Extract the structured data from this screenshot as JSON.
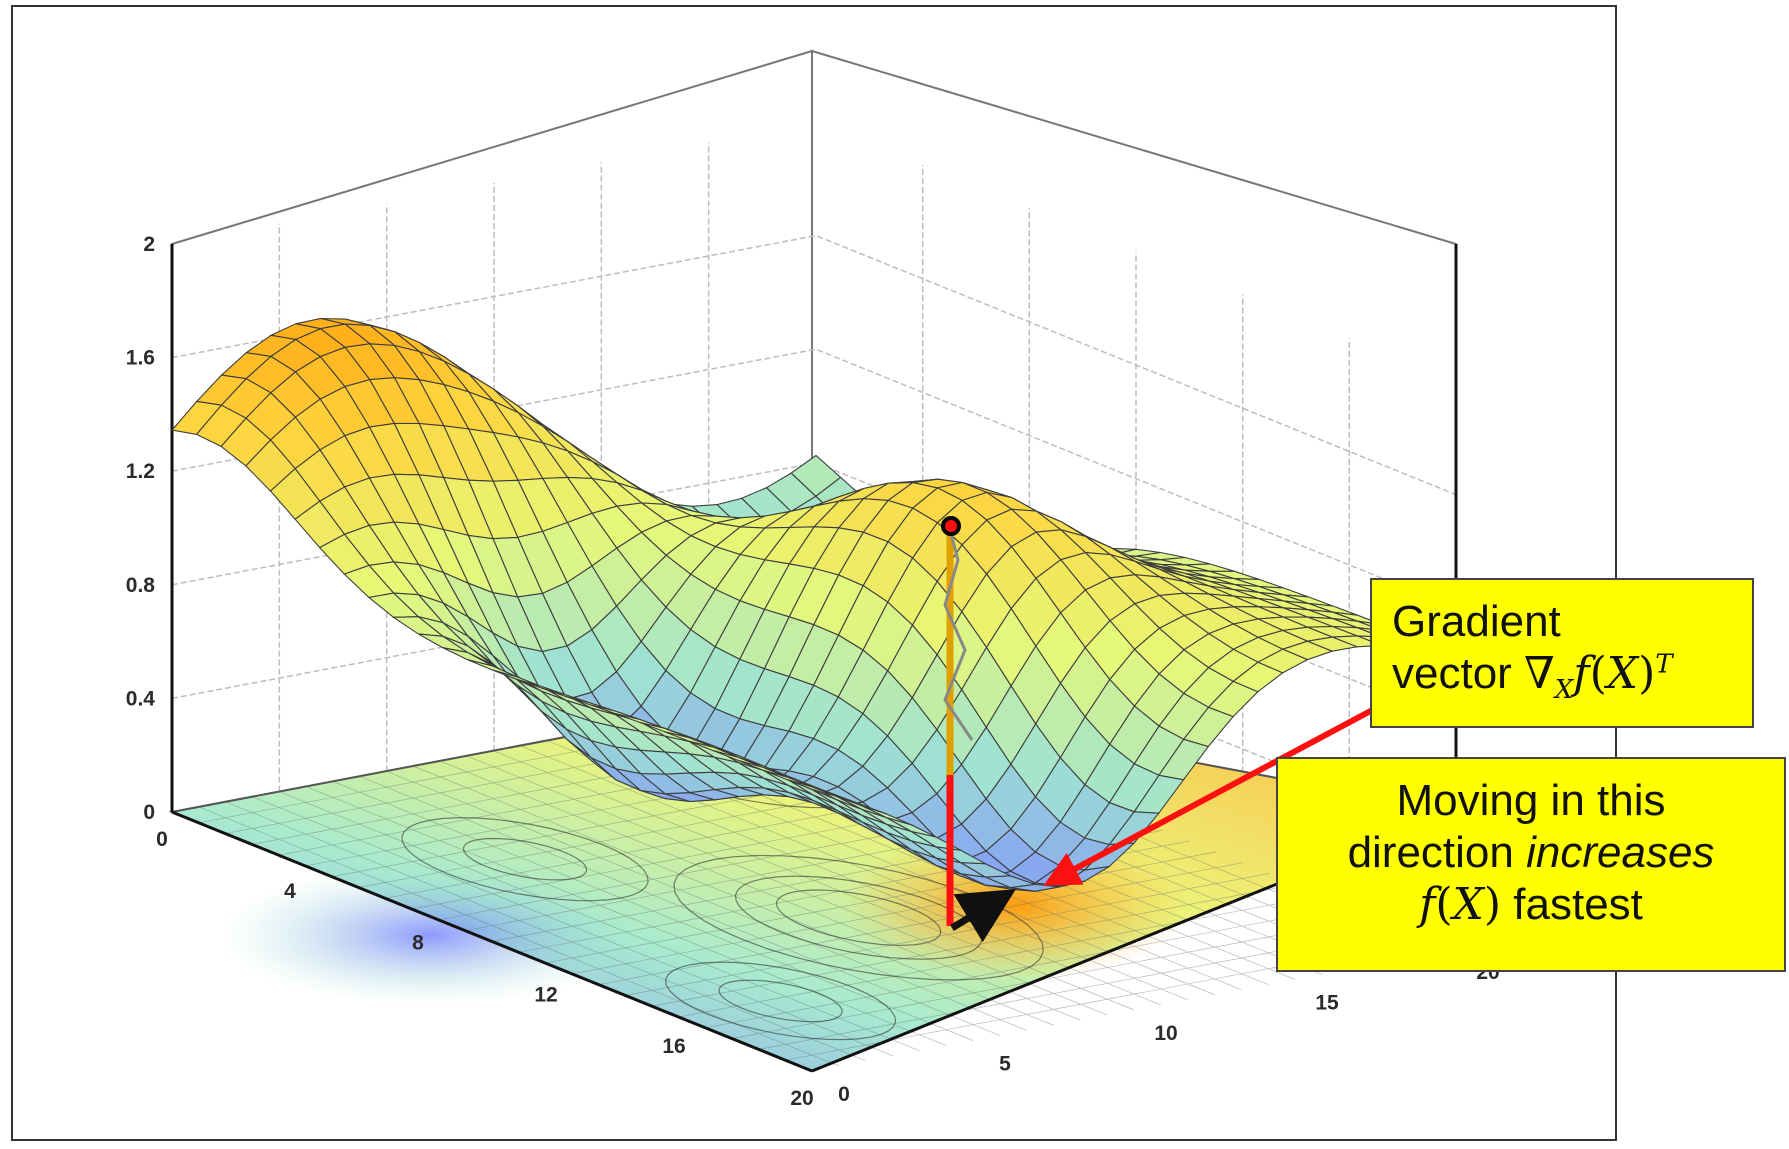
{
  "chart_data": {
    "type": "surface3d",
    "title": "",
    "xlabel": "",
    "ylabel": "",
    "zlabel": "",
    "z_axis": {
      "ticks": [
        "0",
        "0.4",
        "0.8",
        "1.2",
        "1.6",
        "2"
      ],
      "range": [
        0,
        2
      ]
    },
    "left_axis": {
      "ticks": [
        "0",
        "4",
        "8",
        "12",
        "16",
        "20"
      ],
      "range": [
        0,
        20
      ]
    },
    "right_axis": {
      "ticks": [
        "0",
        "5",
        "10",
        "15",
        "20"
      ],
      "range": [
        0,
        20
      ]
    },
    "contour_projection": true,
    "grid": true,
    "surface_colormap": [
      "#7b86ff",
      "#9fe3d2",
      "#e6f878",
      "#ffd23c",
      "#ff9600"
    ],
    "point_marker": {
      "label": ""
    },
    "annotation_colors": {
      "drop_line": "#ff1010",
      "vector": "#111111",
      "pointer": "#ff1010"
    }
  },
  "callouts": {
    "gradient": {
      "line1": "Gradient",
      "prefix": "vector ",
      "nabla": "∇",
      "sub": "X",
      "f": "f",
      "open": "(",
      "arg": "X",
      "close": ")",
      "sup": "T"
    },
    "direction": {
      "line1": "Moving in this",
      "line2_plain": "direction ",
      "line2_italic": "increases",
      "f": "f",
      "open": "(",
      "arg": "X",
      "close": ")",
      "tail": " fastest"
    },
    "background": "#ffff00"
  }
}
